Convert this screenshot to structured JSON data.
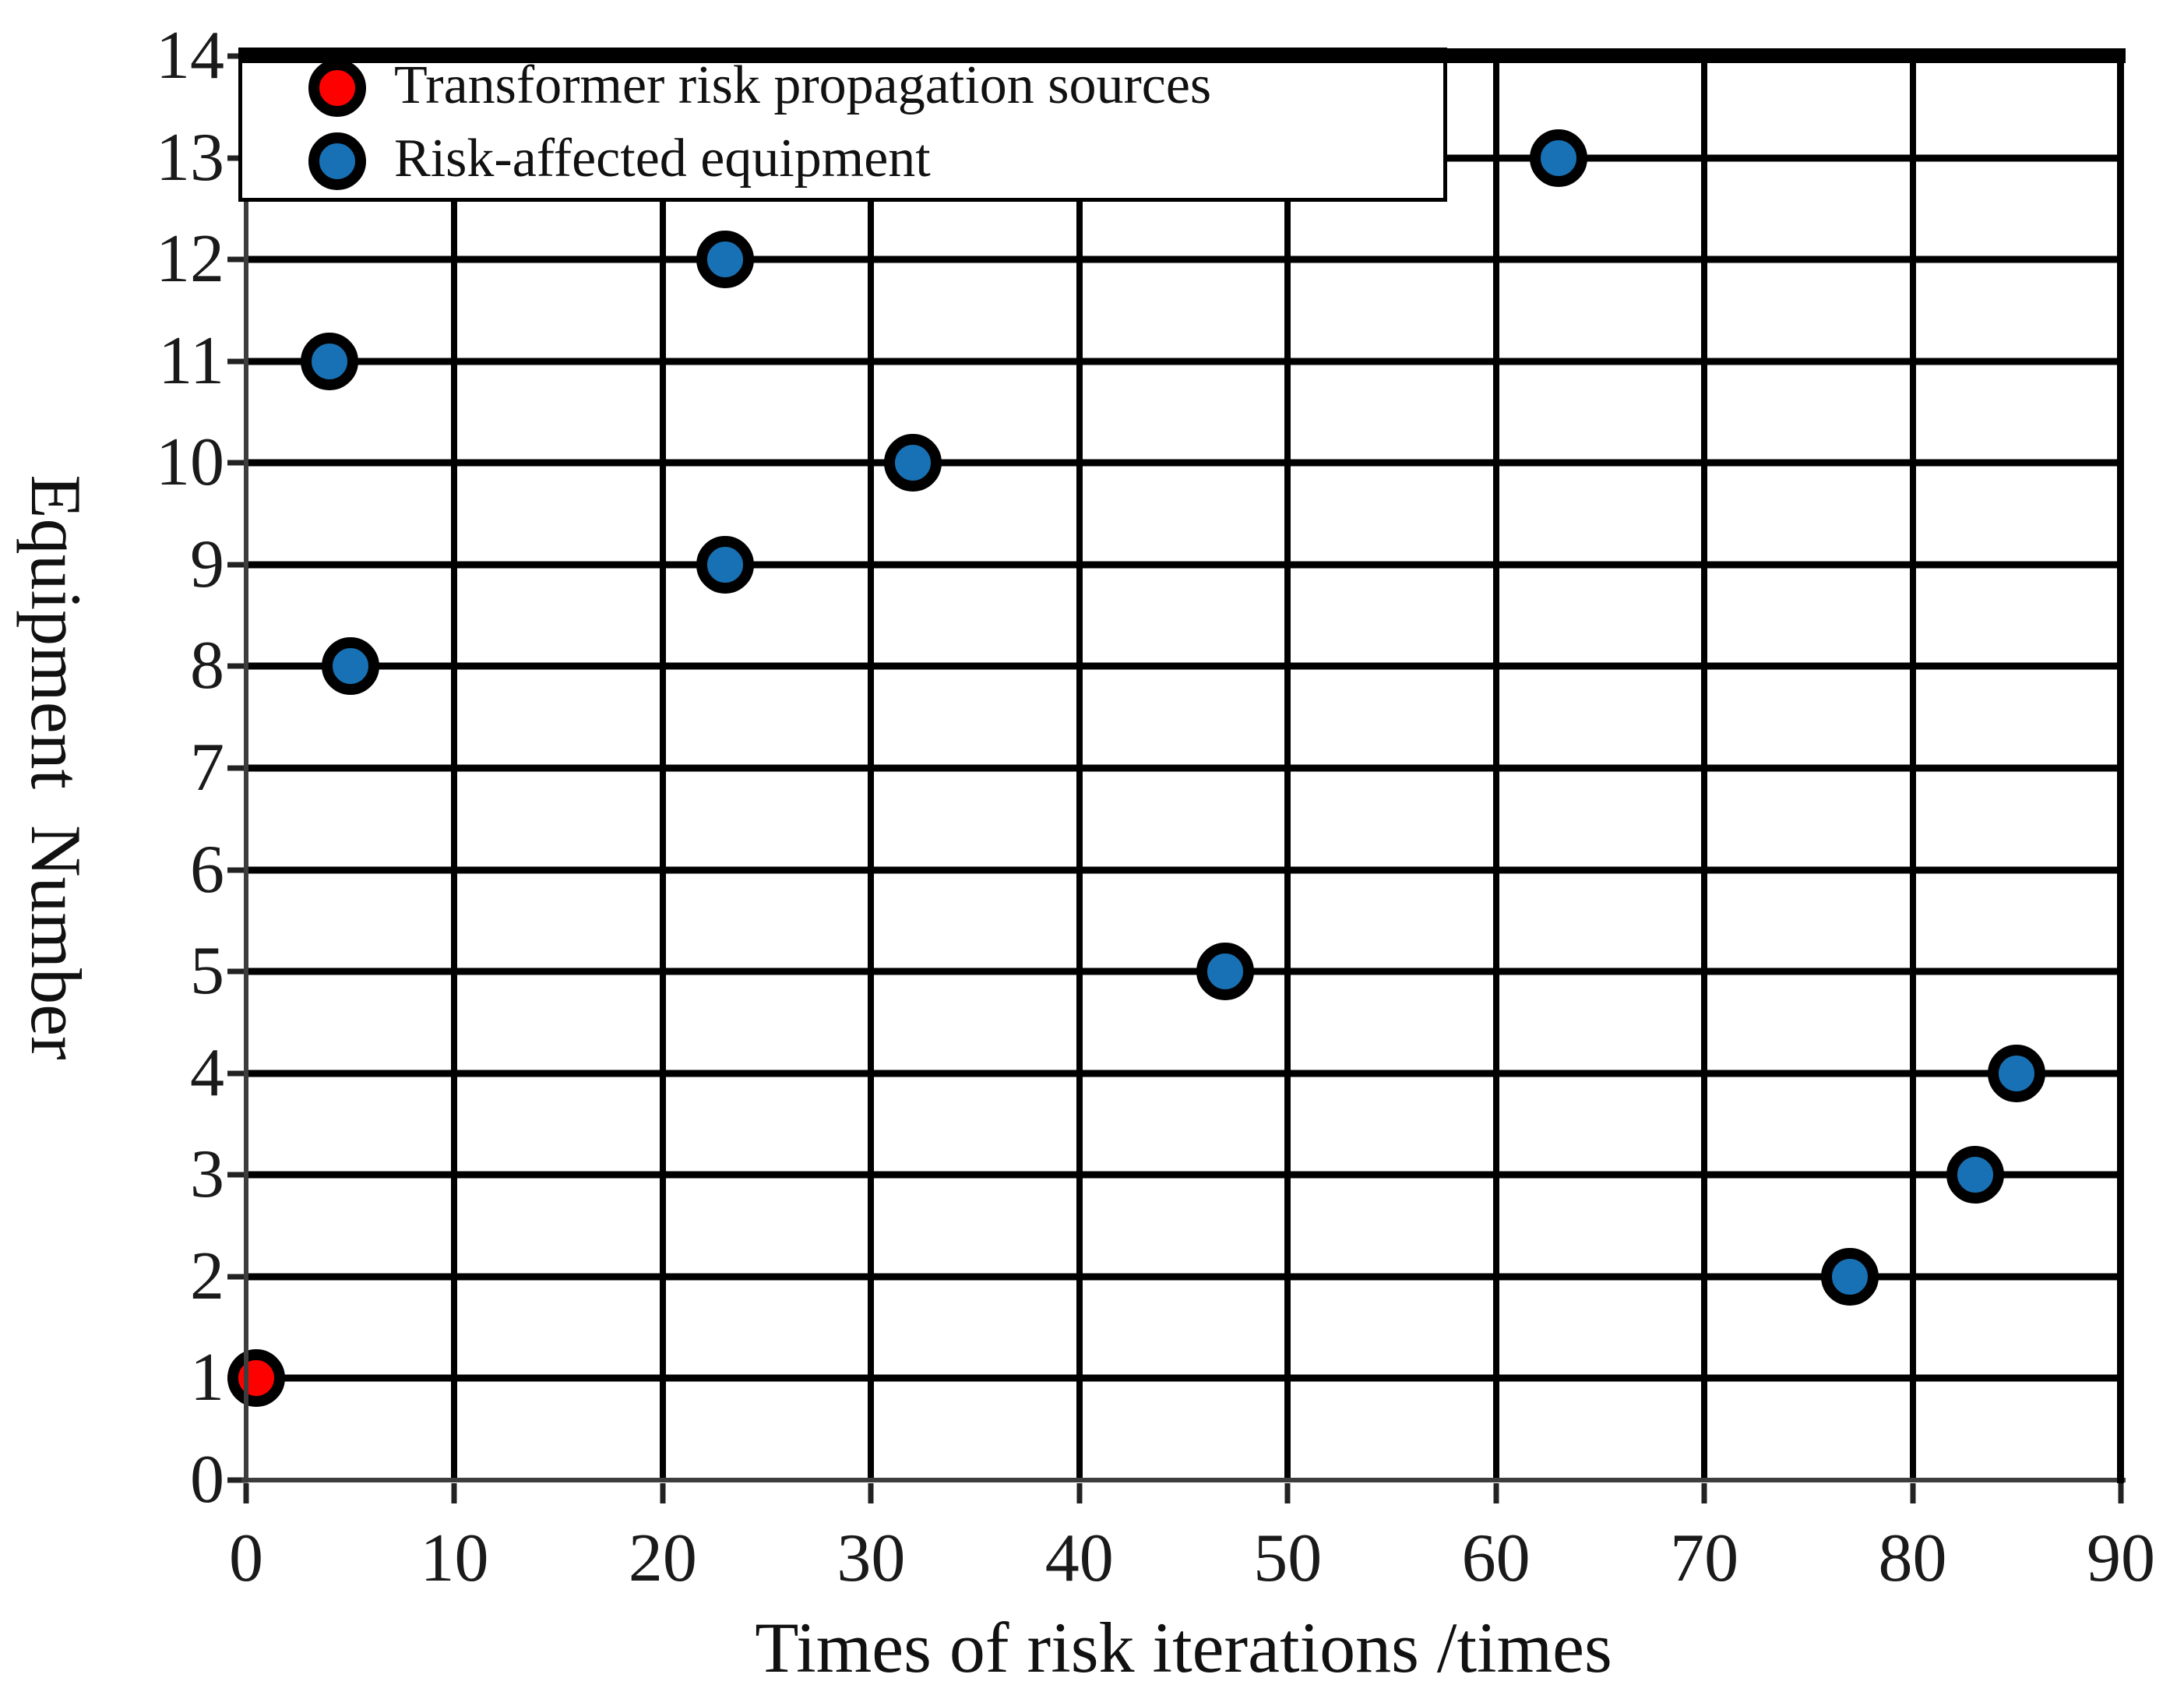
{
  "figure": {
    "background": "#FFFFFF",
    "grid_color": "#000000"
  },
  "chart_data": {
    "type": "scatter",
    "title": "",
    "xlabel": "Times of risk iterations /times",
    "ylabel": "Equipment  Number",
    "xlim": [
      0,
      90
    ],
    "ylim": [
      0,
      14
    ],
    "xticks": [
      0,
      10,
      20,
      30,
      40,
      50,
      60,
      70,
      80,
      90
    ],
    "yticks": [
      0,
      1,
      2,
      3,
      4,
      5,
      6,
      7,
      8,
      9,
      10,
      11,
      12,
      13,
      14
    ],
    "grid": true,
    "legend": {
      "position": "top-left",
      "border_color": "#000000",
      "background": "#FFFFFF"
    },
    "series": [
      {
        "name": "Transformer risk propagation sources",
        "marker": "circle",
        "fill_color": "#FF0000",
        "edge_color": "#000000",
        "points": [
          {
            "x": 0.5,
            "y": 1
          }
        ]
      },
      {
        "name": "Risk-affected equipment",
        "marker": "circle",
        "fill_color": "#1771B4",
        "edge_color": "#000000",
        "points": [
          {
            "x": 4,
            "y": 11
          },
          {
            "x": 5,
            "y": 8
          },
          {
            "x": 23,
            "y": 12
          },
          {
            "x": 23,
            "y": 9
          },
          {
            "x": 32,
            "y": 10
          },
          {
            "x": 47,
            "y": 5
          },
          {
            "x": 63,
            "y": 13
          },
          {
            "x": 77,
            "y": 2
          },
          {
            "x": 83,
            "y": 3
          },
          {
            "x": 85,
            "y": 4
          }
        ]
      }
    ]
  }
}
